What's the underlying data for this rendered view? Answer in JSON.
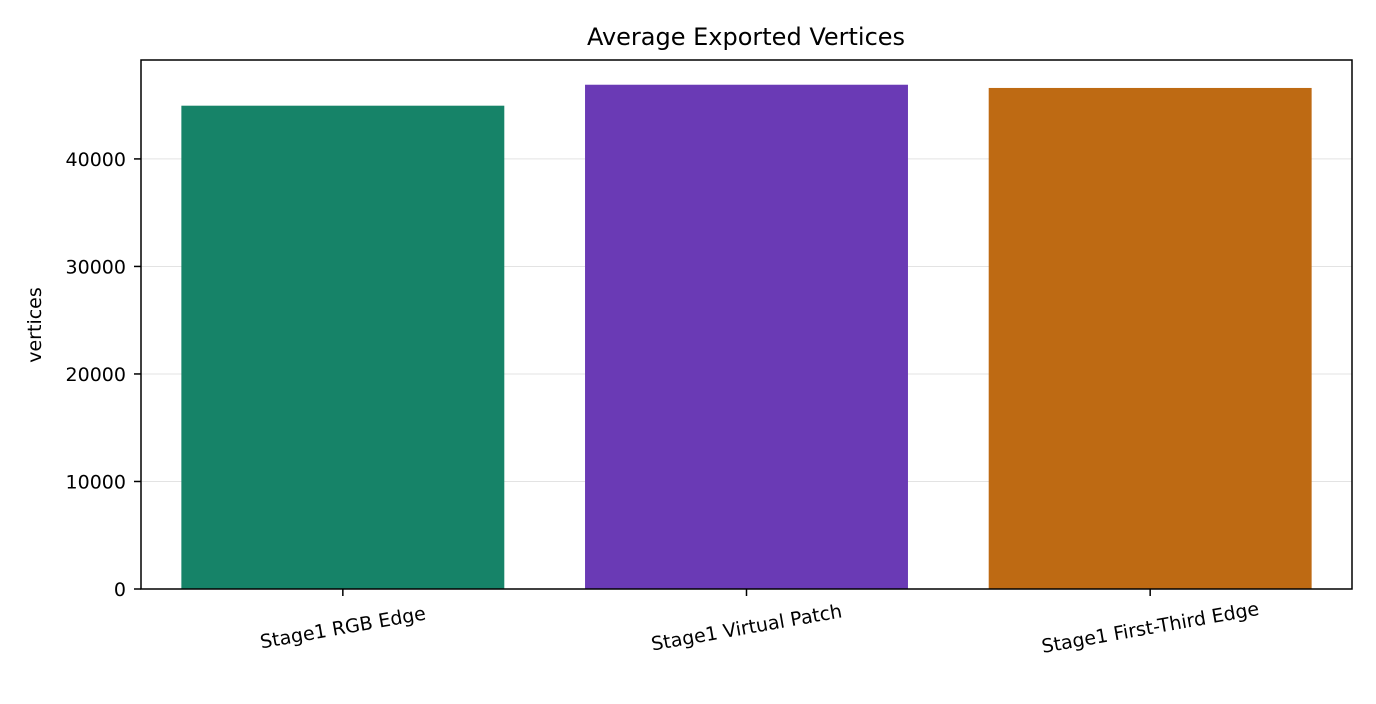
{
  "chart_data": {
    "type": "bar",
    "title": "Average Exported Vertices",
    "xlabel": "",
    "ylabel": "vertices",
    "categories": [
      "Stage1 RGB Edge",
      "Stage1 Virtual Patch",
      "Stage1 First-Third Edge"
    ],
    "values": [
      44950,
      46900,
      46600
    ],
    "colors": [
      "#168368",
      "#6a3ab5",
      "#be6a13"
    ],
    "ylim": [
      0,
      49200
    ],
    "yticks": [
      0,
      10000,
      20000,
      30000,
      40000
    ],
    "ytick_labels": [
      "0",
      "10000",
      "20000",
      "30000",
      "40000"
    ],
    "grid": "horizontal",
    "legend": "none"
  }
}
